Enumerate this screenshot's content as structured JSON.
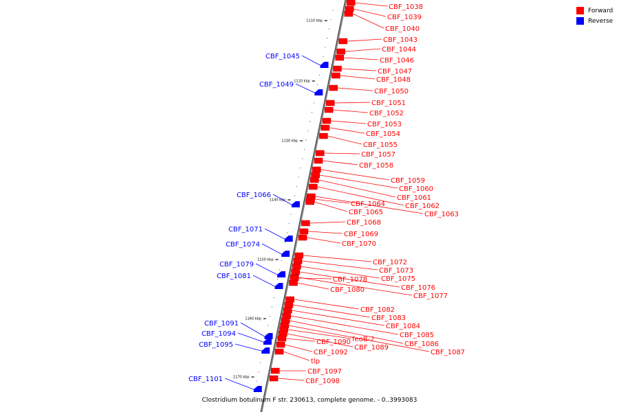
{
  "legend": {
    "forward_label": "Forward",
    "reverse_label": "Reverse",
    "forward_color": "#ff0000",
    "reverse_color": "#0000ff"
  },
  "caption": "Clostridium botulinum F str. 230613, complete genome. - 0..3993083",
  "scale_ticks": [
    "1110 kbp",
    "1120 kbp",
    "1130 kbp",
    "1140 kbp",
    "1150 kbp",
    "1160 kbp",
    "1170 kbp"
  ],
  "forward_genes": [
    "CBF_1038",
    "CBF_1039",
    "CBF_1040",
    "CBF_1043",
    "CBF_1044",
    "CBF_1046",
    "CBF_1047",
    "CBF_1048",
    "CBF_1050",
    "CBF_1051",
    "CBF_1052",
    "CBF_1053",
    "CBF_1054",
    "CBF_1055",
    "CBF_1057",
    "CBF_1058",
    "CBF_1059",
    "CBF_1060",
    "CBF_1061",
    "CBF_1062",
    "CBF_1063",
    "CBF_1064",
    "CBF_1065",
    "CBF_1068",
    "CBF_1069",
    "CBF_1070",
    "CBF_1072",
    "CBF_1073",
    "CBF_1075",
    "CBF_1076",
    "CBF_1077",
    "CBF_1078",
    "CBF_1080",
    "CBF_1082",
    "CBF_1083",
    "CBF_1084",
    "CBF_1085",
    "CBF_1086",
    "CBF_1087",
    "feoB-2",
    "CBF_1089",
    "CBF_1090",
    "CBF_1092",
    "tlp",
    "CBF_1097",
    "CBF_1098"
  ],
  "reverse_genes": [
    "CBF_1045",
    "CBF_1049",
    "CBF_1066",
    "CBF_1071",
    "CBF_1074",
    "CBF_1079",
    "CBF_1081",
    "CBF_1091",
    "CBF_1094",
    "CBF_1095",
    "CBF_1101"
  ]
}
